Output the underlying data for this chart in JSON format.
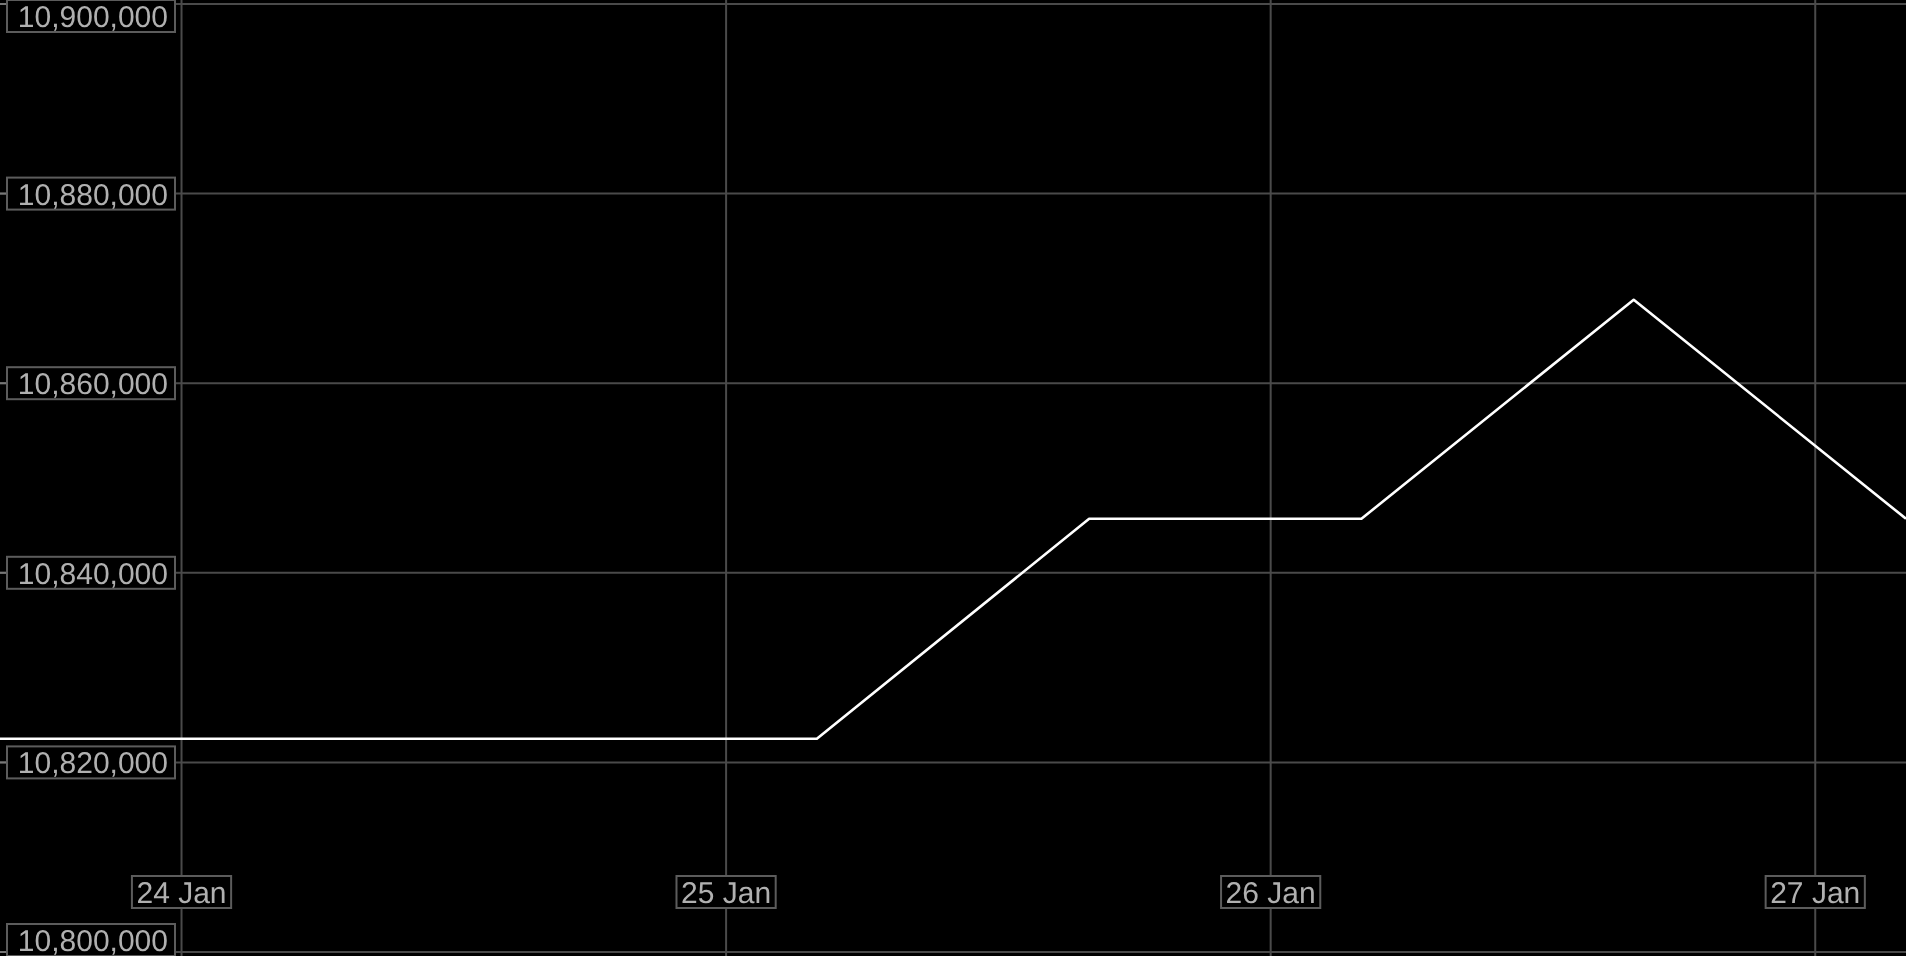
{
  "chart_data": {
    "type": "line",
    "x": [
      "--01-23T16:00",
      "--01-24T04:00",
      "--01-24T16:00",
      "--01-25T04:00",
      "--01-25T16:00",
      "--01-26T04:00",
      "--01-26T16:00",
      "--01-27T04:00"
    ],
    "series": [
      {
        "color": "#ffffff",
        "values": [
          10822500,
          10822500,
          10822500,
          10822500,
          10845700,
          10845700,
          10868800,
          10845700
        ]
      }
    ],
    "xlim": [
      "--01-23T16:00",
      "--01-27T04:00"
    ],
    "xticks": [
      {
        "value": "--01-24",
        "label": "24 Jan"
      },
      {
        "value": "--01-25",
        "label": "25 Jan"
      },
      {
        "value": "--01-26",
        "label": "26 Jan"
      },
      {
        "value": "--01-27",
        "label": "27 Jan"
      }
    ],
    "ylim": [
      10800000,
      10900000
    ],
    "yticks": [
      {
        "value": 10800000,
        "label": "10,800,000"
      },
      {
        "value": 10820000,
        "label": "10,820,000"
      },
      {
        "value": 10840000,
        "label": "10,840,000"
      },
      {
        "value": 10860000,
        "label": "10,860,000"
      },
      {
        "value": 10880000,
        "label": "10,880,000"
      },
      {
        "value": 10900000,
        "label": "10,900,000"
      }
    ],
    "grid": true,
    "line_style": "solid"
  }
}
